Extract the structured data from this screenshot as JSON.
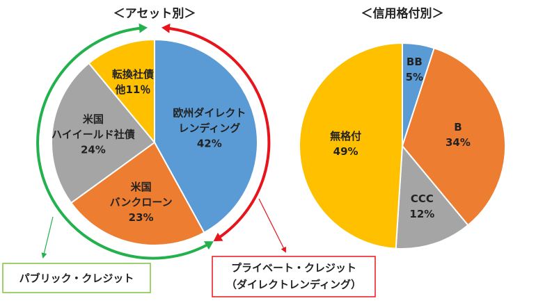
{
  "chart_data": [
    {
      "type": "pie",
      "title": "＜アセット別＞",
      "categories": [
        [
          "欧州ダイレクト",
          "レンディング"
        ],
        [
          "米国",
          "バンクローン"
        ],
        [
          "米国",
          "ハイイールド社債"
        ],
        [
          "転換社債"
        ]
      ],
      "values": [
        42,
        23,
        24,
        11
      ],
      "value_labels": [
        "42%",
        "23%",
        "24%",
        "他11％"
      ],
      "colors": [
        "#5B9BD5",
        "#ED7D31",
        "#A5A5A5",
        "#FFC000"
      ]
    },
    {
      "type": "pie",
      "title": "＜信用格付別＞",
      "categories": [
        [
          "BB"
        ],
        [
          "B"
        ],
        [
          "CCC"
        ],
        [
          "無格付"
        ]
      ],
      "values": [
        5,
        34,
        12,
        49
      ],
      "value_labels": [
        "5%",
        "34%",
        "12%",
        "49%"
      ],
      "colors": [
        "#5B9BD5",
        "#ED7D31",
        "#A5A5A5",
        "#FFC000"
      ]
    }
  ],
  "annotations": {
    "public": [
      "パブリック・クレジット"
    ],
    "private": [
      "プライベート・クレジット",
      "（ダイレクトレンディング）"
    ]
  }
}
